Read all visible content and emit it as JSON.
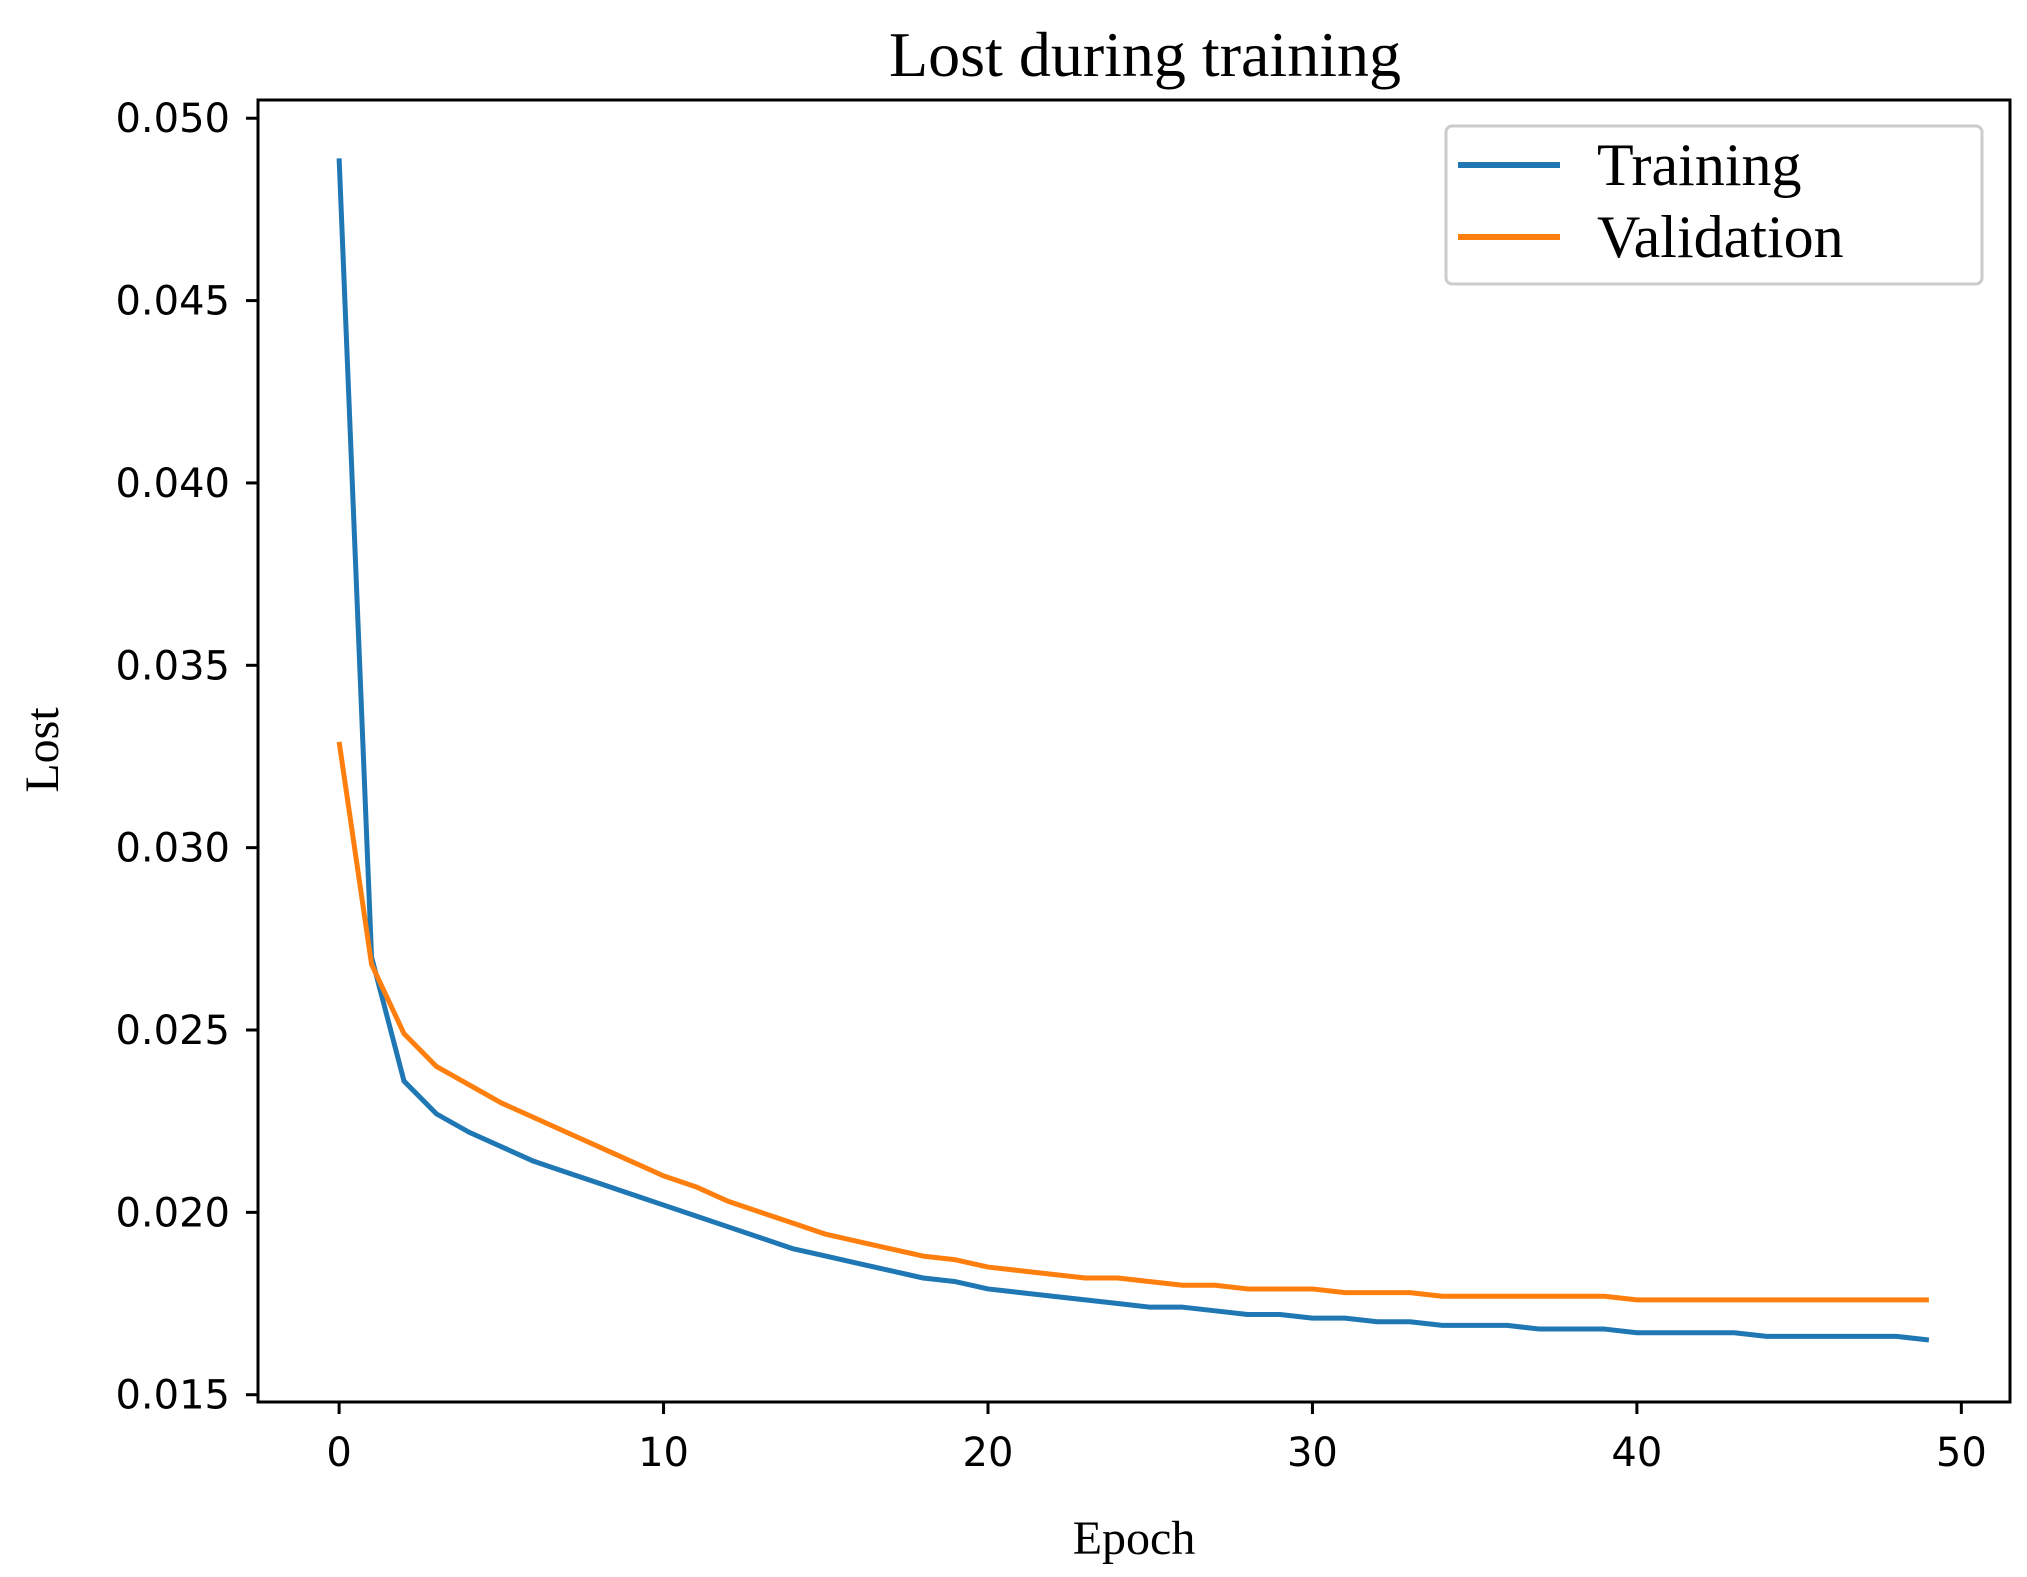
{
  "chart_data": {
    "type": "line",
    "title": "Lost during training",
    "xlabel": "Epoch",
    "ylabel": "Lost",
    "xlim": [
      -2.5,
      51.5
    ],
    "ylim": [
      0.0148,
      0.0505
    ],
    "x_ticks": [
      0,
      10,
      20,
      30,
      40,
      50
    ],
    "x_tick_labels": [
      "0",
      "10",
      "20",
      "30",
      "40",
      "50"
    ],
    "y_ticks": [
      0.015,
      0.02,
      0.025,
      0.03,
      0.035,
      0.04,
      0.045,
      0.05
    ],
    "y_tick_labels": [
      "0.015",
      "0.020",
      "0.025",
      "0.030",
      "0.035",
      "0.040",
      "0.045",
      "0.050"
    ],
    "grid": false,
    "legend_position": "top-right",
    "x": [
      0,
      1,
      2,
      3,
      4,
      5,
      6,
      7,
      8,
      9,
      10,
      11,
      12,
      13,
      14,
      15,
      16,
      17,
      18,
      19,
      20,
      21,
      22,
      23,
      24,
      25,
      26,
      27,
      28,
      29,
      30,
      31,
      32,
      33,
      34,
      35,
      36,
      37,
      38,
      39,
      40,
      41,
      42,
      43,
      44,
      45,
      46,
      47,
      48,
      49
    ],
    "series": [
      {
        "name": "Training",
        "color": "#1f77b4",
        "values": [
          0.0489,
          0.027,
          0.0236,
          0.0227,
          0.0222,
          0.0218,
          0.0214,
          0.0211,
          0.0208,
          0.0205,
          0.0202,
          0.0199,
          0.0196,
          0.0193,
          0.019,
          0.0188,
          0.0186,
          0.0184,
          0.0182,
          0.0181,
          0.0179,
          0.0178,
          0.0177,
          0.0176,
          0.0175,
          0.0174,
          0.0174,
          0.0173,
          0.0172,
          0.0172,
          0.0171,
          0.0171,
          0.017,
          0.017,
          0.0169,
          0.0169,
          0.0169,
          0.0168,
          0.0168,
          0.0168,
          0.0167,
          0.0167,
          0.0167,
          0.0167,
          0.0166,
          0.0166,
          0.0166,
          0.0166,
          0.0166,
          0.0165
        ]
      },
      {
        "name": "Validation",
        "color": "#ff7f0e",
        "values": [
          0.0329,
          0.0268,
          0.0249,
          0.024,
          0.0235,
          0.023,
          0.0226,
          0.0222,
          0.0218,
          0.0214,
          0.021,
          0.0207,
          0.0203,
          0.02,
          0.0197,
          0.0194,
          0.0192,
          0.019,
          0.0188,
          0.0187,
          0.0185,
          0.0184,
          0.0183,
          0.0182,
          0.0182,
          0.0181,
          0.018,
          0.018,
          0.0179,
          0.0179,
          0.0179,
          0.0178,
          0.0178,
          0.0178,
          0.0177,
          0.0177,
          0.0177,
          0.0177,
          0.0177,
          0.0177,
          0.0176,
          0.0176,
          0.0176,
          0.0176,
          0.0176,
          0.0176,
          0.0176,
          0.0176,
          0.0176,
          0.0176
        ]
      }
    ]
  }
}
